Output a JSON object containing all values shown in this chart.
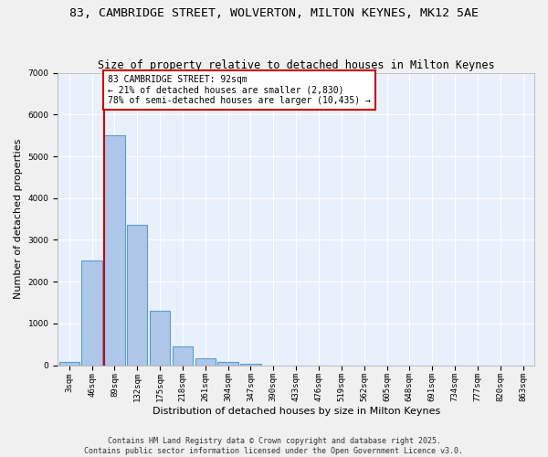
{
  "title_line1": "83, CAMBRIDGE STREET, WOLVERTON, MILTON KEYNES, MK12 5AE",
  "title_line2": "Size of property relative to detached houses in Milton Keynes",
  "xlabel": "Distribution of detached houses by size in Milton Keynes",
  "ylabel": "Number of detached properties",
  "categories": [
    "3sqm",
    "46sqm",
    "89sqm",
    "132sqm",
    "175sqm",
    "218sqm",
    "261sqm",
    "304sqm",
    "347sqm",
    "390sqm",
    "433sqm",
    "476sqm",
    "519sqm",
    "562sqm",
    "605sqm",
    "648sqm",
    "691sqm",
    "734sqm",
    "777sqm",
    "820sqm",
    "863sqm"
  ],
  "values": [
    80,
    2500,
    5500,
    3350,
    1300,
    450,
    170,
    80,
    30,
    0,
    0,
    0,
    0,
    0,
    0,
    0,
    0,
    0,
    0,
    0,
    0
  ],
  "bar_color": "#aec6e8",
  "bar_edgecolor": "#5b9bd5",
  "bar_linewidth": 0.8,
  "redline_bin": 2,
  "redline_color": "#cc0000",
  "annotation_text": "83 CAMBRIDGE STREET: 92sqm\n← 21% of detached houses are smaller (2,830)\n78% of semi-detached houses are larger (10,435) →",
  "annotation_box_facecolor": "#ffffff",
  "annotation_box_edgecolor": "#cc0000",
  "ylim": [
    0,
    7000
  ],
  "yticks": [
    0,
    1000,
    2000,
    3000,
    4000,
    5000,
    6000,
    7000
  ],
  "bg_color": "#e8f0fb",
  "fig_bg_color": "#f0f0f0",
  "grid_color": "#ffffff",
  "footer_line1": "Contains HM Land Registry data © Crown copyright and database right 2025.",
  "footer_line2": "Contains public sector information licensed under the Open Government Licence v3.0.",
  "title_fontsize": 9.5,
  "subtitle_fontsize": 8.5,
  "ylabel_fontsize": 8,
  "xlabel_fontsize": 8,
  "tick_fontsize": 6.5,
  "annotation_fontsize": 7,
  "footer_fontsize": 6
}
